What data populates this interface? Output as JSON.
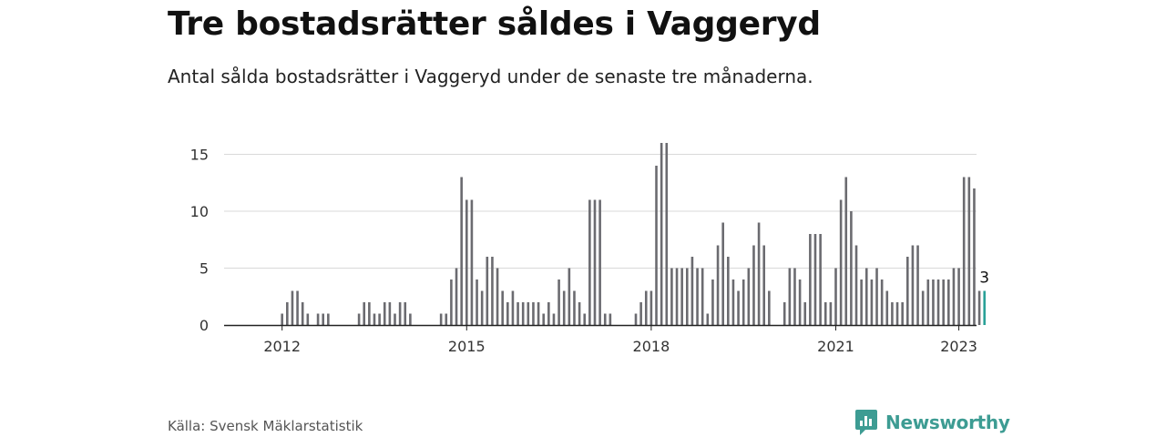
{
  "header": {
    "title": "Tre bostadsrätter såldes i Vaggeryd",
    "subtitle": "Antal sålda bostadsrätter i Vaggeryd under de senaste tre månaderna."
  },
  "footer": {
    "source": "Källa: Svensk Mäklarstatistik",
    "brand": "Newsworthy"
  },
  "colors": {
    "bar": "#6b6b70",
    "highlight": "#2aa198",
    "grid": "#d9d9d9",
    "brand": "#3d9c93"
  },
  "chart_data": {
    "type": "bar",
    "x_ticks": [
      2012,
      2015,
      2018,
      2021,
      2023
    ],
    "y_ticks": [
      0,
      5,
      10,
      15
    ],
    "ylim": [
      0,
      16.5
    ],
    "xlim": [
      "2011-03",
      "2023-03"
    ],
    "grid": true,
    "highlight_label": "3",
    "series": [
      {
        "values": [
          0,
          0,
          0,
          0,
          0,
          0,
          0,
          0,
          0,
          0,
          1,
          2,
          3,
          3,
          2,
          1,
          0,
          1,
          1,
          1,
          0,
          0,
          0,
          0,
          0,
          1,
          2,
          2,
          1,
          1,
          2,
          2,
          1,
          2,
          2,
          1,
          0,
          0,
          0,
          0,
          0,
          1,
          1,
          4,
          5,
          13,
          11,
          11,
          4,
          3,
          6,
          6,
          5,
          3,
          2,
          3,
          2,
          2,
          2,
          2,
          2,
          1,
          2,
          1,
          4,
          3,
          5,
          3,
          2,
          1,
          11,
          11,
          11,
          1,
          1,
          0,
          0,
          0,
          0,
          1,
          2,
          3,
          3,
          14,
          16,
          16,
          5,
          5,
          5,
          5,
          6,
          5,
          5,
          1,
          4,
          7,
          9,
          6,
          4,
          3,
          4,
          5,
          7,
          9,
          7,
          3,
          0,
          0,
          2,
          5,
          5,
          4,
          2,
          8,
          8,
          8,
          2,
          2,
          5,
          11,
          13,
          10,
          7,
          4,
          5,
          4,
          5,
          4,
          3,
          2,
          2,
          2,
          6,
          7,
          7,
          3,
          4,
          4,
          4,
          4,
          4,
          5,
          5,
          13,
          13,
          12,
          3,
          3
        ]
      }
    ]
  }
}
